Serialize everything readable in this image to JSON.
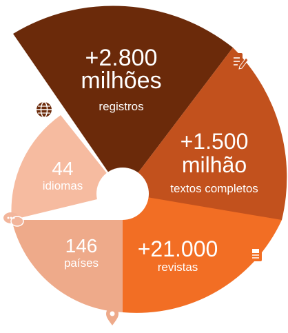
{
  "infographic": {
    "segments": [
      {
        "id": "registros",
        "value_text": "+2.800",
        "unit_text": "milhões",
        "caption": "registros",
        "color": "#6b2a0a"
      },
      {
        "id": "textos",
        "value_text": "+1.500",
        "unit_text": "milhão",
        "caption": "textos completos",
        "color": "#c2511d"
      },
      {
        "id": "revistas",
        "value_text": "+21.000",
        "caption": "revistas",
        "color": "#f26e24"
      },
      {
        "id": "paises",
        "value_text": "146",
        "caption": "países",
        "color": "#eeaa8a"
      },
      {
        "id": "idiomas",
        "value_text": "44",
        "caption": "idiomas",
        "color": "#f6bba0"
      }
    ],
    "icons": {
      "globe": "globe-icon",
      "edit": "edit-document-icon",
      "chat": "chat-bubbles-icon",
      "journal": "journal-icon",
      "location": "location-pin-icon"
    },
    "icon_colors": {
      "dark": "#6b2a0a",
      "mid": "#c2511d",
      "orange": "#f26e24",
      "light": "#f2b59b"
    }
  }
}
